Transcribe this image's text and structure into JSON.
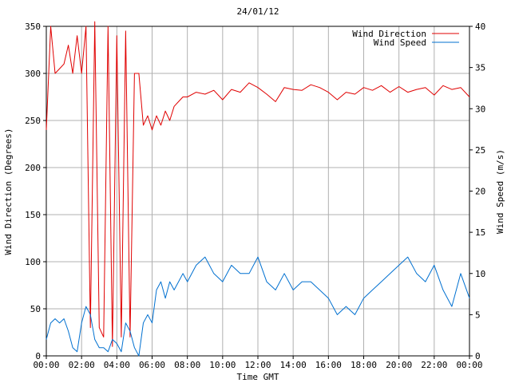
{
  "chart_data": {
    "type": "line",
    "title": "24/01/12",
    "xlabel": "Time GMT",
    "ylabel_left": "Wind Direction (Degrees)",
    "ylabel_right": "Wind Speed (m/s)",
    "x_ticks": [
      "00:00",
      "02:00",
      "04:00",
      "06:00",
      "08:00",
      "10:00",
      "12:00",
      "14:00",
      "16:00",
      "18:00",
      "20:00",
      "22:00",
      "00:00"
    ],
    "xlim_hours": [
      0,
      24
    ],
    "ylim_left": [
      0,
      350
    ],
    "yticks_left": [
      0,
      50,
      100,
      150,
      200,
      250,
      300,
      350
    ],
    "ylim_right": [
      0,
      40
    ],
    "yticks_right": [
      0,
      5,
      10,
      15,
      20,
      25,
      30,
      35,
      40
    ],
    "grid": true,
    "legend_position": "top-right",
    "colors": {
      "direction": "#e00000",
      "speed": "#0070d0",
      "grid": "#b0b0b0"
    },
    "series": [
      {
        "name": "Wind Direction",
        "axis": "left",
        "x_hours": [
          0,
          0.25,
          0.5,
          0.75,
          1,
          1.25,
          1.5,
          1.75,
          2,
          2.25,
          2.5,
          2.75,
          3,
          3.25,
          3.5,
          3.75,
          4,
          4.25,
          4.5,
          4.75,
          5,
          5.25,
          5.5,
          5.75,
          6,
          6.25,
          6.5,
          6.75,
          7,
          7.25,
          7.5,
          7.75,
          8,
          8.5,
          9,
          9.5,
          10,
          10.5,
          11,
          11.5,
          12,
          12.5,
          13,
          13.5,
          14,
          14.5,
          15,
          15.5,
          16,
          16.5,
          17,
          17.5,
          18,
          18.5,
          19,
          19.5,
          20,
          20.5,
          21,
          21.5,
          22,
          22.5,
          23,
          23.5,
          24
        ],
        "values": [
          240,
          350,
          300,
          305,
          310,
          330,
          300,
          340,
          300,
          350,
          30,
          355,
          30,
          20,
          350,
          10,
          340,
          20,
          345,
          20,
          300,
          300,
          245,
          255,
          240,
          255,
          245,
          260,
          250,
          265,
          270,
          275,
          275,
          280,
          278,
          282,
          272,
          283,
          280,
          290,
          285,
          278,
          270,
          285,
          283,
          282,
          288,
          285,
          280,
          272,
          280,
          278,
          285,
          282,
          287,
          280,
          286,
          280,
          283,
          285,
          277,
          287,
          283,
          285,
          275
        ]
      },
      {
        "name": "Wind Speed",
        "axis": "right",
        "x_hours": [
          0,
          0.25,
          0.5,
          0.75,
          1,
          1.25,
          1.5,
          1.75,
          2,
          2.25,
          2.5,
          2.75,
          3,
          3.25,
          3.5,
          3.75,
          4,
          4.25,
          4.5,
          4.75,
          5,
          5.25,
          5.5,
          5.75,
          6,
          6.25,
          6.5,
          6.75,
          7,
          7.25,
          7.5,
          7.75,
          8,
          8.5,
          9,
          9.5,
          10,
          10.5,
          11,
          11.5,
          12,
          12.5,
          13,
          13.5,
          14,
          14.5,
          15,
          15.5,
          16,
          16.5,
          17,
          17.5,
          18,
          18.5,
          19,
          19.5,
          20,
          20.5,
          21,
          21.5,
          22,
          22.5,
          23,
          23.5,
          24
        ],
        "values": [
          2,
          4,
          4.5,
          4,
          4.5,
          3,
          1,
          0.5,
          4,
          6,
          5,
          2,
          1,
          1,
          0.5,
          2,
          1.5,
          0.5,
          4,
          3,
          1,
          0,
          4,
          5,
          4,
          8,
          9,
          7,
          9,
          8,
          9,
          10,
          9,
          11,
          12,
          10,
          9,
          11,
          10,
          10,
          12,
          9,
          8,
          10,
          8,
          9,
          9,
          8,
          7,
          5,
          6,
          5,
          7,
          8,
          9,
          10,
          11,
          12,
          10,
          9,
          11,
          8,
          6,
          10,
          7
        ]
      }
    ]
  }
}
